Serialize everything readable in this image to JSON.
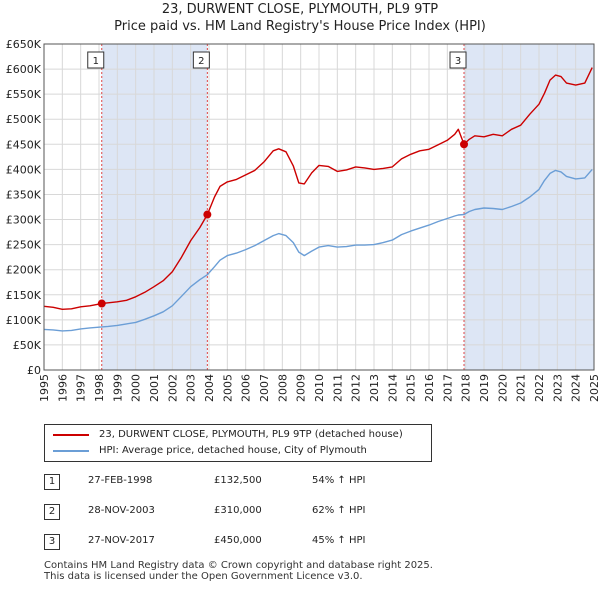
{
  "title_line1": "23, DURWENT CLOSE, PLYMOUTH, PL9 9TP",
  "title_line2": "Price paid vs. HM Land Registry's House Price Index (HPI)",
  "chart_data": {
    "type": "line",
    "title": "23, DURWENT CLOSE, PLYMOUTH, PL9 9TP",
    "subtitle": "Price paid vs. HM Land Registry's House Price Index (HPI)",
    "xlim": [
      1995,
      2025
    ],
    "ylim": [
      0,
      650000
    ],
    "x_ticks": [
      "1995",
      "1996",
      "1997",
      "1998",
      "1999",
      "2000",
      "2001",
      "2002",
      "2003",
      "2004",
      "2005",
      "2006",
      "2007",
      "2008",
      "2009",
      "2010",
      "2011",
      "2012",
      "2013",
      "2014",
      "2015",
      "2016",
      "2017",
      "2018",
      "2019",
      "2020",
      "2021",
      "2022",
      "2023",
      "2024",
      "2025"
    ],
    "y_ticks": [
      {
        "value": 0,
        "label": "£0"
      },
      {
        "value": 50000,
        "label": "£50K"
      },
      {
        "value": 100000,
        "label": "£100K"
      },
      {
        "value": 150000,
        "label": "£150K"
      },
      {
        "value": 200000,
        "label": "£200K"
      },
      {
        "value": 250000,
        "label": "£250K"
      },
      {
        "value": 300000,
        "label": "£300K"
      },
      {
        "value": 350000,
        "label": "£350K"
      },
      {
        "value": 400000,
        "label": "£400K"
      },
      {
        "value": 450000,
        "label": "£450K"
      },
      {
        "value": 500000,
        "label": "£500K"
      },
      {
        "value": 550000,
        "label": "£550K"
      },
      {
        "value": 600000,
        "label": "£600K"
      },
      {
        "value": 650000,
        "label": "£650K"
      }
    ],
    "grid": true,
    "series": [
      {
        "name": "23, DURWENT CLOSE, PLYMOUTH, PL9 9TP (detached house)",
        "color": "#cc0000",
        "x": [
          1995.0,
          1995.5,
          1996.0,
          1996.5,
          1997.0,
          1997.5,
          1998.15,
          1998.5,
          1999.0,
          1999.5,
          2000.0,
          2000.5,
          2001.0,
          2001.5,
          2002.0,
          2002.5,
          2003.0,
          2003.5,
          2003.91,
          2004.3,
          2004.6,
          2005.0,
          2005.5,
          2006.0,
          2006.5,
          2007.0,
          2007.5,
          2007.8,
          2008.2,
          2008.6,
          2008.9,
          2009.2,
          2009.6,
          2010.0,
          2010.5,
          2011.0,
          2011.5,
          2012.0,
          2012.5,
          2013.0,
          2013.5,
          2014.0,
          2014.5,
          2015.0,
          2015.5,
          2016.0,
          2016.5,
          2017.0,
          2017.4,
          2017.6,
          2017.91,
          2018.2,
          2018.5,
          2019.0,
          2019.5,
          2020.0,
          2020.5,
          2021.0,
          2021.5,
          2022.0,
          2022.3,
          2022.6,
          2022.9,
          2023.2,
          2023.5,
          2024.0,
          2024.5,
          2024.9
        ],
        "values": [
          127000,
          125000,
          121000,
          122000,
          126000,
          128000,
          132500,
          134000,
          136000,
          139000,
          146000,
          155000,
          166000,
          178000,
          196000,
          225000,
          258000,
          284000,
          310000,
          345000,
          366000,
          375000,
          380000,
          389000,
          398000,
          415000,
          437000,
          441000,
          435000,
          407000,
          373000,
          371000,
          393000,
          408000,
          406000,
          396000,
          399000,
          405000,
          403000,
          400000,
          402000,
          405000,
          421000,
          430000,
          437000,
          440000,
          449000,
          458000,
          470000,
          480000,
          450000,
          460000,
          467000,
          465000,
          470000,
          467000,
          480000,
          488000,
          510000,
          530000,
          552000,
          578000,
          588000,
          585000,
          572000,
          568000,
          572000,
          603000
        ]
      },
      {
        "name": "HPI: Average price, detached house, City of Plymouth",
        "color": "#6b9ed6",
        "x": [
          1995.0,
          1995.5,
          1996.0,
          1996.5,
          1997.0,
          1997.5,
          1998.15,
          1998.5,
          1999.0,
          1999.5,
          2000.0,
          2000.5,
          2001.0,
          2001.5,
          2002.0,
          2002.5,
          2003.0,
          2003.5,
          2003.91,
          2004.3,
          2004.6,
          2005.0,
          2005.5,
          2006.0,
          2006.5,
          2007.0,
          2007.5,
          2007.8,
          2008.2,
          2008.6,
          2008.9,
          2009.2,
          2009.6,
          2010.0,
          2010.5,
          2011.0,
          2011.5,
          2012.0,
          2012.5,
          2013.0,
          2013.5,
          2014.0,
          2014.5,
          2015.0,
          2015.5,
          2016.0,
          2016.5,
          2017.0,
          2017.4,
          2017.6,
          2017.91,
          2018.2,
          2018.5,
          2019.0,
          2019.5,
          2020.0,
          2020.5,
          2021.0,
          2021.5,
          2022.0,
          2022.3,
          2022.6,
          2022.9,
          2023.2,
          2023.5,
          2024.0,
          2024.5,
          2024.9
        ],
        "values": [
          81000,
          80000,
          78000,
          79000,
          82000,
          84000,
          86000,
          87000,
          89000,
          92000,
          95000,
          101000,
          108000,
          116000,
          128000,
          147000,
          166000,
          180000,
          190000,
          206000,
          219000,
          228000,
          233000,
          240000,
          248000,
          258000,
          268000,
          272000,
          268000,
          254000,
          235000,
          228000,
          237000,
          245000,
          248000,
          245000,
          246000,
          249000,
          249000,
          250000,
          254000,
          259000,
          270000,
          277000,
          283000,
          289000,
          296000,
          302000,
          307000,
          309000,
          310000,
          316000,
          320000,
          323000,
          322000,
          320000,
          326000,
          333000,
          345000,
          360000,
          378000,
          392000,
          398000,
          395000,
          386000,
          381000,
          383000,
          400000
        ]
      }
    ],
    "sales": [
      {
        "id": "1",
        "x": 1998.15,
        "value": 132500,
        "date": "27-FEB-1998",
        "price": "£132,500",
        "hpi": "54% ↑ HPI"
      },
      {
        "id": "2",
        "x": 2003.91,
        "value": 310000,
        "date": "28-NOV-2003",
        "price": "£310,000",
        "hpi": "62% ↑ HPI"
      },
      {
        "id": "3",
        "x": 2017.91,
        "value": 450000,
        "date": "27-NOV-2017",
        "price": "£450,000",
        "hpi": "45% ↑ HPI"
      }
    ],
    "colors": {
      "accent": "#cc0000",
      "hpi": "#6b9ed6",
      "shade": "#dde6f5",
      "marker_line": "#dd4444"
    }
  },
  "legend": {
    "item1": "23, DURWENT CLOSE, PLYMOUTH, PL9 9TP (detached house)",
    "item2": "HPI: Average price, detached house, City of Plymouth"
  },
  "footer": {
    "line1": "Contains HM Land Registry data © Crown copyright and database right 2025.",
    "line2": "This data is licensed under the Open Government Licence v3.0."
  }
}
